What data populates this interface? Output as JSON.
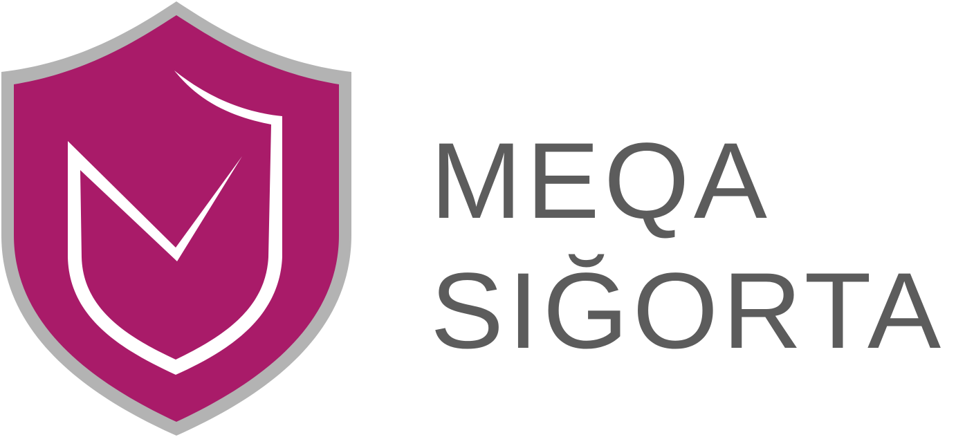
{
  "brand": {
    "line1": "MEQA",
    "line2": "SIĞORTA"
  },
  "icon": {
    "name": "shield-check-icon",
    "fill_color": "#a91b69",
    "border_color": "#b3b3b3",
    "mark_color": "#ffffff"
  },
  "text_color": "#5c5c5c"
}
